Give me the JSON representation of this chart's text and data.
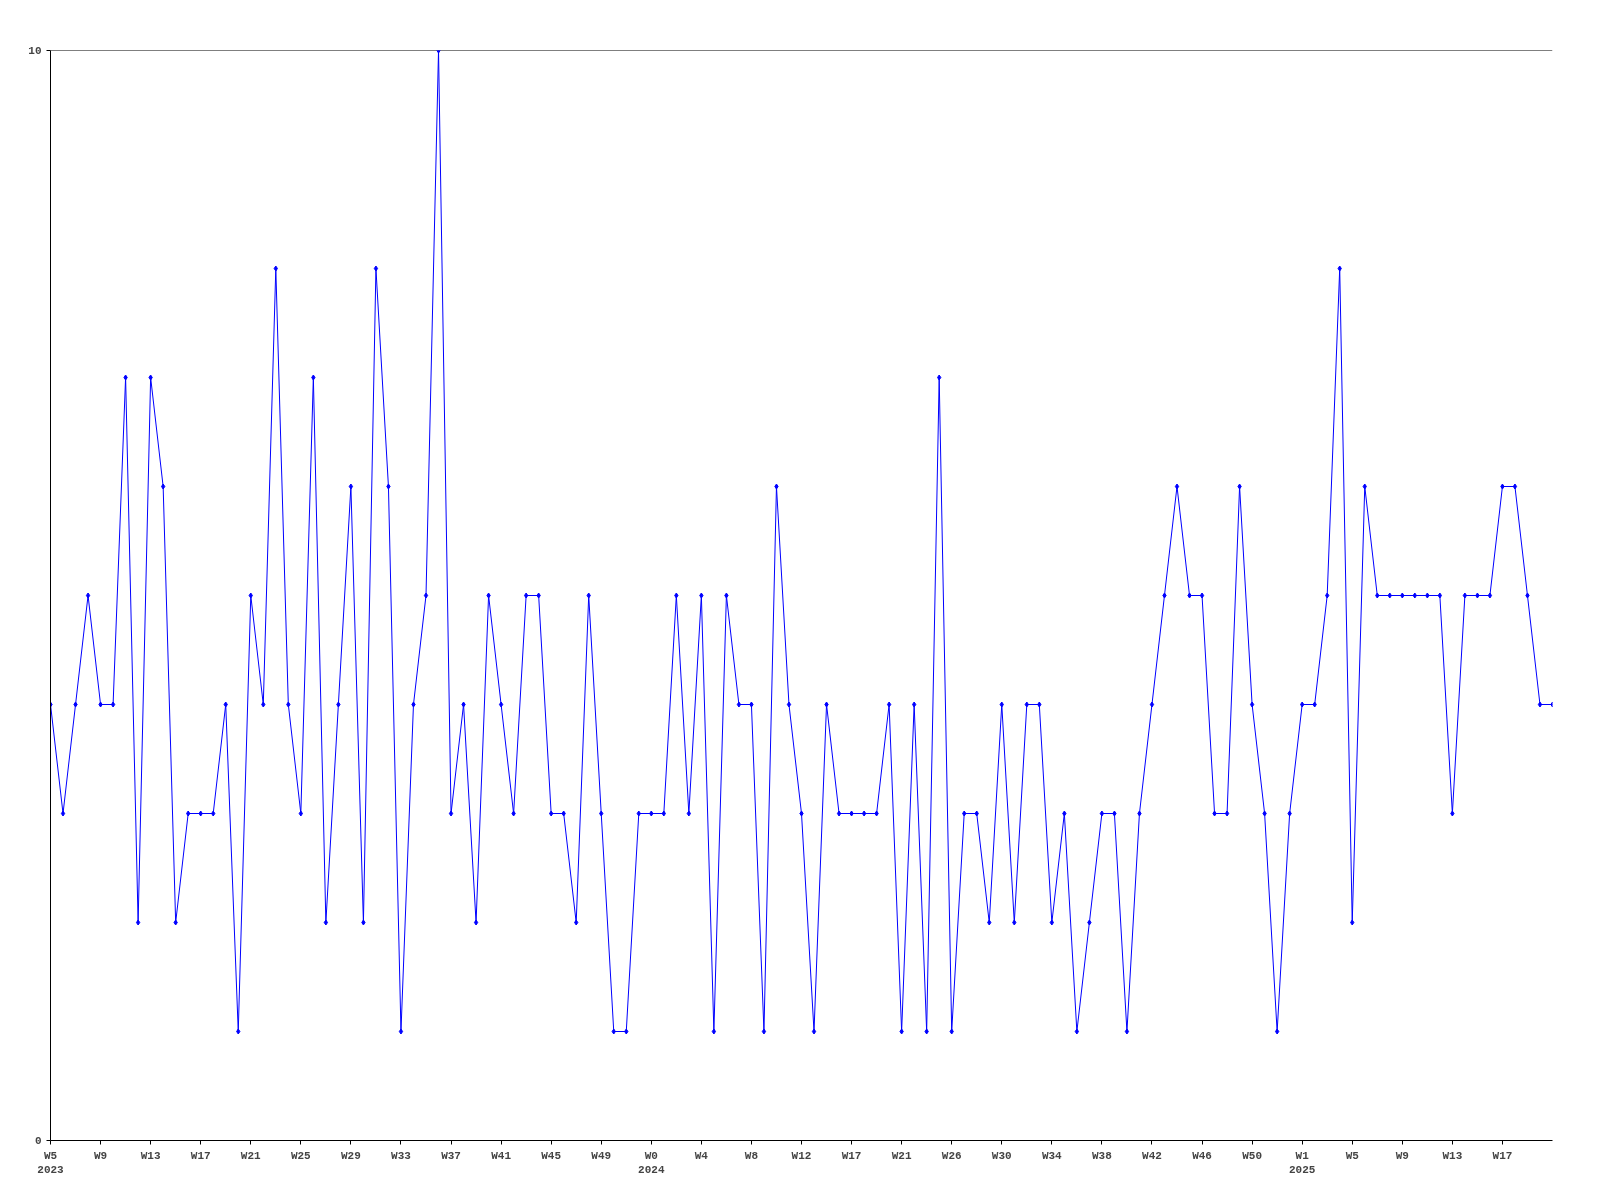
{
  "chart_data": {
    "type": "line",
    "categories": [
      "W5\n2023",
      null,
      null,
      null,
      "W9",
      null,
      null,
      null,
      "W13",
      null,
      null,
      null,
      "W17",
      null,
      null,
      null,
      "W21",
      null,
      null,
      null,
      "W25",
      null,
      null,
      null,
      "W29",
      null,
      null,
      null,
      "W33",
      null,
      null,
      null,
      "W37",
      null,
      null,
      null,
      "W41",
      null,
      null,
      null,
      "W45",
      null,
      null,
      null,
      "W49",
      null,
      null,
      null,
      "W0\n2024",
      null,
      null,
      null,
      "W4",
      null,
      null,
      null,
      "W8",
      null,
      null,
      null,
      "W12",
      null,
      null,
      null,
      "W17",
      null,
      null,
      null,
      "W21",
      null,
      null,
      null,
      "W26",
      null,
      null,
      null,
      "W30",
      null,
      null,
      null,
      "W34",
      null,
      null,
      null,
      "W38",
      null,
      null,
      null,
      "W42",
      null,
      null,
      null,
      "W46",
      null,
      null,
      null,
      "W50",
      null,
      null,
      null,
      "W1\n2025",
      null,
      null,
      null,
      "W5",
      null,
      null,
      null,
      "W9",
      null,
      null,
      null,
      "W13",
      null,
      null,
      null,
      "W17",
      null,
      null,
      null,
      null
    ],
    "series": [
      {
        "color": "#0000ff",
        "values": [
          4,
          3,
          4,
          5,
          4,
          4,
          7,
          2,
          7,
          6,
          2,
          3,
          3,
          3,
          4,
          1,
          5,
          4,
          8,
          4,
          3,
          7,
          2,
          4,
          6,
          2,
          8,
          6,
          1,
          4,
          5,
          10,
          3,
          4,
          2,
          5,
          4,
          3,
          5,
          5,
          3,
          3,
          2,
          5,
          3,
          1,
          1,
          3,
          3,
          3,
          5,
          3,
          5,
          1,
          5,
          4,
          4,
          1,
          6,
          4,
          3,
          1,
          4,
          3,
          3,
          3,
          3,
          4,
          1,
          4,
          1,
          7,
          1,
          3,
          3,
          2,
          4,
          2,
          4,
          4,
          2,
          3,
          1,
          2,
          3,
          3,
          1,
          3,
          4,
          5,
          6,
          5,
          5,
          3,
          3,
          6,
          4,
          3,
          1,
          3,
          4,
          4,
          5,
          8,
          2,
          6,
          5,
          5,
          5,
          5,
          5,
          5,
          3,
          5,
          5,
          5,
          6,
          6,
          5,
          4,
          4
        ]
      }
    ],
    "ylim": [
      0,
      10
    ],
    "yticks": [
      0,
      10
    ],
    "grid": false,
    "marker": "diamond",
    "line_style": "solid"
  }
}
